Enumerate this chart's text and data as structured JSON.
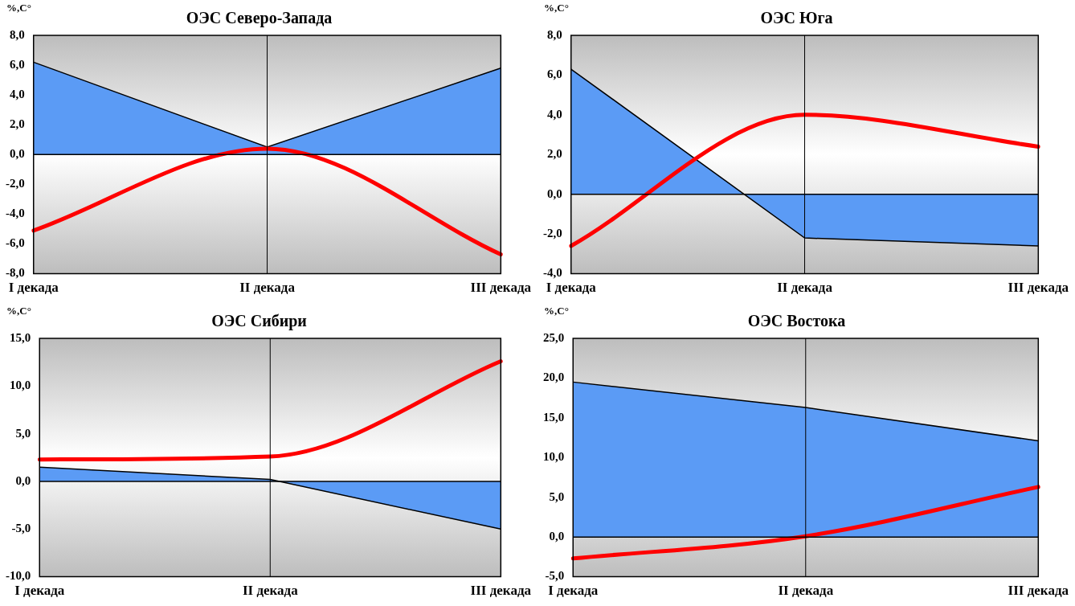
{
  "chart_data": [
    {
      "type": "line",
      "title": "ОЭС Северо-Запада",
      "ylabel": "%,С°",
      "ref_lines": [
        {
          "axis": "y",
          "value": 0,
          "color": "#000000"
        },
        {
          "axis": "x",
          "value": "II декада",
          "color": "#000000"
        }
      ],
      "categories": [
        "I декада",
        "II декада",
        "III декада"
      ],
      "ylim": [
        -8,
        8
      ],
      "yticks": [
        {
          "value": -8,
          "label": "-8,0"
        },
        {
          "value": -6,
          "label": "-6,0"
        },
        {
          "value": -4,
          "label": "-4,0"
        },
        {
          "value": -2,
          "label": "-2,0"
        },
        {
          "value": 0,
          "label": "0,0"
        },
        {
          "value": 2,
          "label": "2,0"
        },
        {
          "value": 4,
          "label": "4,0"
        },
        {
          "value": 6,
          "label": "6,0"
        },
        {
          "value": 8,
          "label": "8,0"
        }
      ],
      "series": [
        {
          "type": "area",
          "color": "#5b9bf5",
          "values": [
            6.2,
            0.5,
            5.8
          ]
        },
        {
          "type": "line",
          "color": "#ff0000",
          "values": [
            -5.1,
            0.4,
            -6.7
          ]
        }
      ]
    },
    {
      "type": "line",
      "title": "ОЭС Юга",
      "ylabel": "%,С°",
      "ref_lines": [
        {
          "axis": "y",
          "value": 0,
          "color": "#000000"
        },
        {
          "axis": "x",
          "value": "II декада",
          "color": "#000000"
        }
      ],
      "categories": [
        "I декада",
        "II декада",
        "III декада"
      ],
      "ylim": [
        -4,
        8
      ],
      "yticks": [
        {
          "value": -4,
          "label": "-4,0"
        },
        {
          "value": -2,
          "label": "-2,0"
        },
        {
          "value": 0,
          "label": "0,0"
        },
        {
          "value": 2,
          "label": "2,0"
        },
        {
          "value": 4,
          "label": "4,0"
        },
        {
          "value": 6,
          "label": "6,0"
        },
        {
          "value": 8,
          "label": "8,0"
        }
      ],
      "series": [
        {
          "type": "area",
          "color": "#5b9bf5",
          "values": [
            6.3,
            -2.2,
            -2.6
          ]
        },
        {
          "type": "line",
          "color": "#ff0000",
          "values": [
            -2.6,
            4.0,
            2.4
          ]
        }
      ]
    },
    {
      "type": "line",
      "title": "ОЭС Сибири",
      "ylabel": "%,С°",
      "ref_lines": [
        {
          "axis": "y",
          "value": 0,
          "color": "#000000"
        },
        {
          "axis": "x",
          "value": "II декада",
          "color": "#000000"
        }
      ],
      "categories": [
        "I декада",
        "II декада",
        "III декада"
      ],
      "ylim": [
        -10,
        15
      ],
      "yticks": [
        {
          "value": -10,
          "label": "-10,0"
        },
        {
          "value": -5,
          "label": "-5,0"
        },
        {
          "value": 0,
          "label": "0,0"
        },
        {
          "value": 5,
          "label": "5,0"
        },
        {
          "value": 10,
          "label": "10,0"
        },
        {
          "value": 15,
          "label": "15,0"
        }
      ],
      "series": [
        {
          "type": "area",
          "color": "#5b9bf5",
          "values": [
            1.5,
            0.2,
            -5.0
          ]
        },
        {
          "type": "line",
          "color": "#ff0000",
          "values": [
            2.3,
            2.6,
            12.6
          ]
        }
      ]
    },
    {
      "type": "line",
      "title": "ОЭС Востока",
      "ylabel": "%,С°",
      "ref_lines": [
        {
          "axis": "y",
          "value": 0,
          "color": "#000000"
        },
        {
          "axis": "x",
          "value": "II декада",
          "color": "#000000"
        }
      ],
      "categories": [
        "I декада",
        "II декада",
        "III декада"
      ],
      "ylim": [
        -5,
        25
      ],
      "yticks": [
        {
          "value": -5,
          "label": "-5,0"
        },
        {
          "value": 0,
          "label": "0,0"
        },
        {
          "value": 5,
          "label": "5,0"
        },
        {
          "value": 10,
          "label": "10,0"
        },
        {
          "value": 15,
          "label": "15,0"
        },
        {
          "value": 20,
          "label": "20,0"
        },
        {
          "value": 25,
          "label": "25,0"
        }
      ],
      "series": [
        {
          "type": "area",
          "color": "#5b9bf5",
          "values": [
            19.5,
            16.3,
            12.1
          ]
        },
        {
          "type": "line",
          "color": "#ff0000",
          "values": [
            -2.7,
            0.1,
            6.3
          ]
        }
      ]
    }
  ]
}
